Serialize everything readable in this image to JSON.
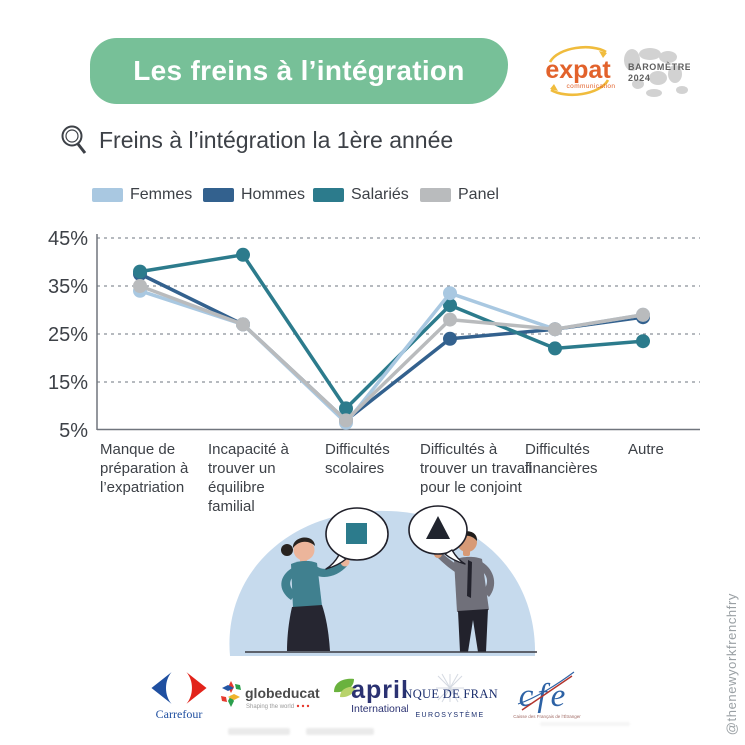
{
  "header": {
    "title": "Les freins à l’intégration"
  },
  "brand": {
    "expat_name": "expat",
    "expat_sub": "communication",
    "barometre_line1": "BAROMÈTRE",
    "barometre_line2": "2024"
  },
  "subtitle": {
    "text": "Freins à l’intégration la 1ère année"
  },
  "watermark": "@thenewyorkfrenchfry",
  "colors": {
    "header_bg": "#77c098",
    "text_dark": "#3d4147",
    "axis_gray": "#8b9099",
    "expat_orange": "#e2622b",
    "expat_yellow": "#f0bc3d",
    "illustration_bg": "#c6daed"
  },
  "chart_data": {
    "type": "line",
    "title": "Freins à l’intégration la 1ère année",
    "categories": [
      "Manque de préparation à l’expatriation",
      "Incapacité à trouver un équilibre familial",
      "Difficultés scolaires",
      "Difficultés à trouver un travail pour le conjoint",
      "Difficultés financières",
      "Autre"
    ],
    "series": [
      {
        "name": "Femmes",
        "color": "#a9c8e1",
        "values": [
          34,
          27,
          6.5,
          33.5,
          26,
          29
        ]
      },
      {
        "name": "Hommes",
        "color": "#33618e",
        "values": [
          37.5,
          27,
          7,
          24,
          26,
          28.5
        ]
      },
      {
        "name": "Salariés",
        "color": "#2c7b8c",
        "values": [
          38,
          41.5,
          9.5,
          31,
          22,
          23.5
        ]
      },
      {
        "name": "Panel",
        "color": "#b9bbbd",
        "values": [
          35,
          27,
          7,
          28,
          26,
          29
        ]
      }
    ],
    "ylim": [
      5,
      45
    ],
    "yticks": [
      45,
      35,
      25,
      15,
      5
    ],
    "ytick_suffix": "%",
    "grid": "horizontal-dashed",
    "legend_position": "top"
  },
  "partners": [
    {
      "label": "Carrefour"
    },
    {
      "label": "globeducate",
      "tagline": "Shaping the world"
    },
    {
      "label": "april",
      "sub": "International"
    },
    {
      "label": "BANQUE DE FRANCE",
      "sub": "EUROSYSTÈME"
    },
    {
      "label": "cfe",
      "sub": "Caisse des Français de l’Étranger"
    }
  ]
}
